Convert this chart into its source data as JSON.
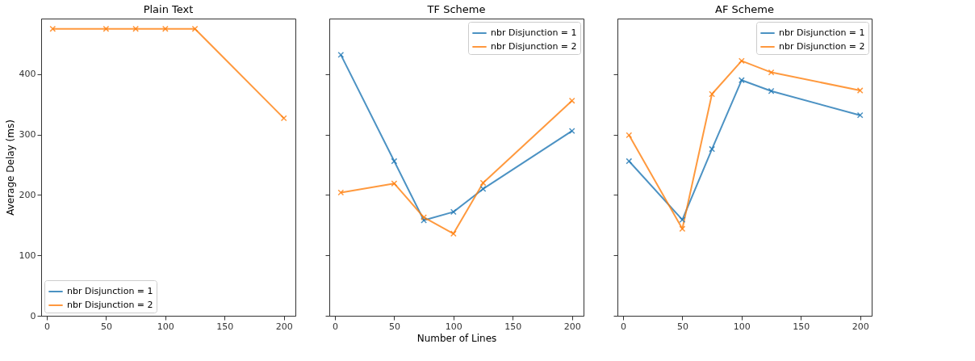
{
  "chart_data": [
    {
      "type": "line",
      "title": "Plain Text",
      "ylabel": "Average Delay (ms)",
      "x": [
        5,
        50,
        75,
        100,
        125,
        200
      ],
      "xlim": [
        -4.75,
        209.75
      ],
      "xticks": [
        0,
        50,
        100,
        150,
        200
      ],
      "ylim": [
        0,
        492
      ],
      "yticks": [
        0,
        100,
        200,
        300,
        400
      ],
      "marker": "cross",
      "legend": "bottom left",
      "grid": false,
      "series": [
        {
          "name": "nbr Disjunction = 1",
          "color": "#1f77b4",
          "values": [
            null,
            null,
            null,
            null,
            null,
            null
          ]
        },
        {
          "name": "nbr Disjunction = 2",
          "color": "#ff7f0e",
          "values": [
            475,
            475,
            475,
            475,
            475,
            327
          ]
        }
      ]
    },
    {
      "type": "line",
      "title": "TF Scheme",
      "xlabel": "Number of Lines",
      "x": [
        5,
        50,
        75,
        100,
        125,
        200
      ],
      "xlim": [
        -4.75,
        209.75
      ],
      "xticks": [
        0,
        50,
        100,
        150,
        200
      ],
      "ylim": [
        0,
        492
      ],
      "yticks": [
        0,
        100,
        200,
        300,
        400
      ],
      "tick_labels": "x",
      "marker": "cross",
      "legend": "top right",
      "grid": false,
      "series": [
        {
          "name": "nbr Disjunction = 1",
          "color": "#1f77b4",
          "values": [
            432,
            256,
            158,
            172,
            210,
            306
          ]
        },
        {
          "name": "nbr Disjunction = 2",
          "color": "#ff7f0e",
          "values": [
            204,
            219,
            163,
            136,
            220,
            356
          ]
        }
      ]
    },
    {
      "type": "line",
      "title": "AF Scheme",
      "x": [
        5,
        50,
        75,
        100,
        125,
        200
      ],
      "xlim": [
        -4.75,
        209.75
      ],
      "xticks": [
        0,
        50,
        100,
        150,
        200
      ],
      "ylim": [
        0,
        492
      ],
      "yticks": [
        0,
        100,
        200,
        300,
        400
      ],
      "tick_labels": "x",
      "marker": "cross",
      "legend": "top right",
      "grid": false,
      "series": [
        {
          "name": "nbr Disjunction = 1",
          "color": "#1f77b4",
          "values": [
            256,
            159,
            276,
            390,
            372,
            332
          ]
        },
        {
          "name": "nbr Disjunction = 2",
          "color": "#ff7f0e",
          "values": [
            299,
            144,
            367,
            422,
            403,
            373
          ]
        }
      ]
    }
  ]
}
